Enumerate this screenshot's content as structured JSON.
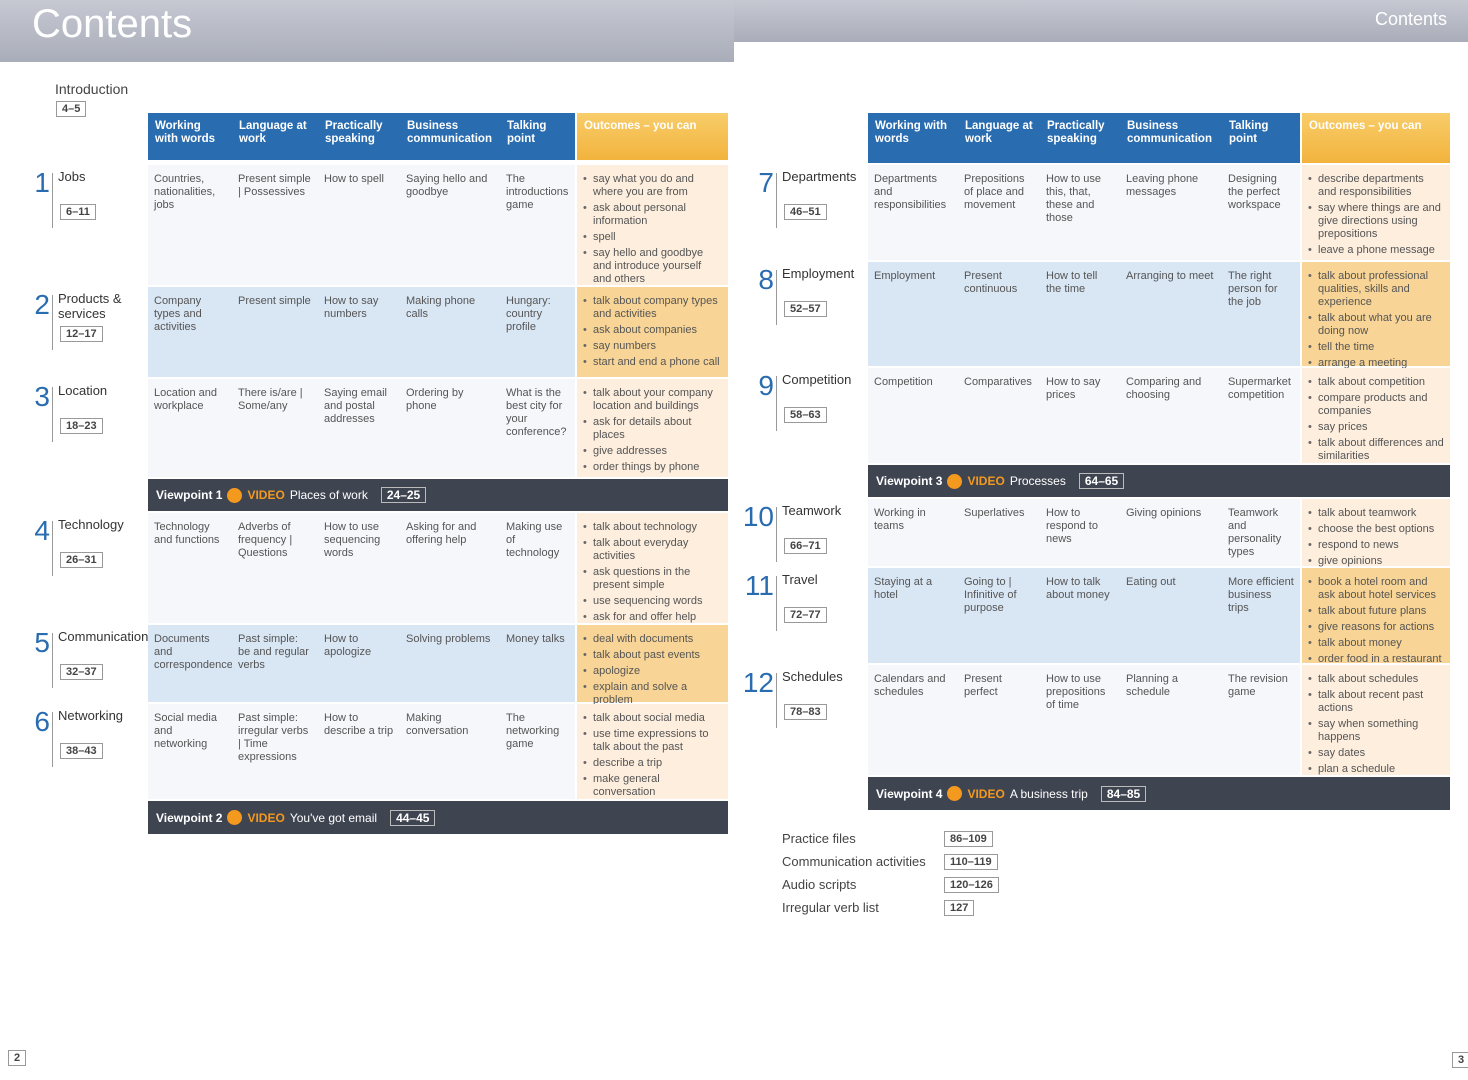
{
  "headers": [
    "Working with words",
    "Language at work",
    "Practically speaking",
    "Business communication",
    "Talking point",
    "Outcomes – you can"
  ],
  "left": {
    "title": "Contents",
    "page": "2",
    "intro": {
      "label": "Introduction",
      "pages": "4–5"
    },
    "rows": [
      {
        "num": "1",
        "title": "Jobs",
        "pages": "6–11",
        "cells": [
          "Countries, nationalities, jobs",
          "Present simple | Possessives",
          "How to spell",
          "Saying hello and goodbye",
          "The introductions game"
        ],
        "outcomes": [
          "say what you do and where you are from",
          "ask about personal information",
          "spell",
          "say hello and goodbye and introduce yourself and others"
        ]
      },
      {
        "num": "2",
        "title": "Products & services",
        "pages": "12–17",
        "cells": [
          "Company types and activities",
          "Present simple",
          "How to say numbers",
          "Making phone calls",
          "Hungary: country profile"
        ],
        "outcomes": [
          "talk about company types and activities",
          "ask about companies",
          "say numbers",
          "start and end a phone call"
        ]
      },
      {
        "num": "3",
        "title": "Location",
        "pages": "18–23",
        "cells": [
          "Location and workplace",
          "There is/are | Some/any",
          "Saying email and postal addresses",
          "Ordering by phone",
          "What is the best city for your conference?"
        ],
        "outcomes": [
          "talk about your company location and buildings",
          "ask for details about places",
          "give addresses",
          "order things by phone"
        ]
      },
      {
        "label": "Viewpoint 1",
        "video": "VIDEO",
        "topic": "Places of work",
        "pages": "24–25"
      },
      {
        "num": "4",
        "title": "Technology",
        "pages": "26–31",
        "cells": [
          "Technology and functions",
          "Adverbs of frequency | Questions",
          "How to use sequencing words",
          "Asking for and offering help",
          "Making use of technology"
        ],
        "outcomes": [
          "talk about technology",
          "talk about everyday activities",
          "ask questions in the present simple",
          "use sequencing words",
          "ask for and offer help"
        ]
      },
      {
        "num": "5",
        "title": "Communication",
        "pages": "32–37",
        "cells": [
          "Documents and correspondence",
          "Past simple: be and regular verbs",
          "How to apologize",
          "Solving problems",
          "Money talks"
        ],
        "outcomes": [
          "deal with documents",
          "talk about past events",
          "apologize",
          "explain and solve a problem"
        ]
      },
      {
        "num": "6",
        "title": "Networking",
        "pages": "38–43",
        "cells": [
          "Social media and networking",
          "Past simple: irregular verbs | Time expressions",
          "How to describe a trip",
          "Making conversation",
          "The networking game"
        ],
        "outcomes": [
          "talk about social media",
          "use time expressions to talk about the past",
          "describe a trip",
          "make general conversation"
        ]
      },
      {
        "label": "Viewpoint 2",
        "video": "VIDEO",
        "topic": "You've got email",
        "pages": "44–45"
      }
    ]
  },
  "right": {
    "title": "Contents",
    "page": "3",
    "rows": [
      {
        "num": "7",
        "title": "Departments",
        "pages": "46–51",
        "cells": [
          "Departments and responsibilities",
          "Prepositions of place and movement",
          "How to use this, that, these and those",
          "Leaving phone messages",
          "Designing the perfect workspace"
        ],
        "outcomes": [
          "describe departments and responsibilities",
          "say where things are and give directions using prepositions",
          "leave a phone message"
        ]
      },
      {
        "num": "8",
        "title": "Employment",
        "pages": "52–57",
        "cells": [
          "Employment",
          "Present continuous",
          "How to tell the time",
          "Arranging to meet",
          "The right person for the job"
        ],
        "outcomes": [
          "talk about professional qualities, skills and experience",
          "talk about what you are doing now",
          "tell the time",
          "arrange a meeting"
        ]
      },
      {
        "num": "9",
        "title": "Competition",
        "pages": "58–63",
        "cells": [
          "Competition",
          "Comparatives",
          "How to say prices",
          "Comparing and choosing",
          "Supermarket competition"
        ],
        "outcomes": [
          "talk about competition",
          "compare products and companies",
          "say prices",
          "talk about differences and similarities"
        ]
      },
      {
        "label": "Viewpoint 3",
        "video": "VIDEO",
        "topic": "Processes",
        "pages": "64–65"
      },
      {
        "num": "10",
        "title": "Teamwork",
        "pages": "66–71",
        "cells": [
          "Working in teams",
          "Superlatives",
          "How to respond to news",
          "Giving opinions",
          "Teamwork and personality types"
        ],
        "outcomes": [
          "talk about teamwork",
          "choose the best options",
          "respond to news",
          "give opinions"
        ]
      },
      {
        "num": "11",
        "title": "Travel",
        "pages": "72–77",
        "cells": [
          "Staying at a hotel",
          "Going to | Infinitive of purpose",
          "How to talk about money",
          "Eating out",
          "More efficient business trips"
        ],
        "outcomes": [
          "book a hotel room and ask about hotel services",
          "talk about future plans",
          "give reasons for actions",
          "talk about money",
          "order food in a restaurant"
        ]
      },
      {
        "num": "12",
        "title": "Schedules",
        "pages": "78–83",
        "cells": [
          "Calendars and schedules",
          "Present perfect",
          "How to use prepositions of time",
          "Planning a schedule",
          "The revision game"
        ],
        "outcomes": [
          "talk about schedules",
          "talk about recent past actions",
          "say when something happens",
          "say dates",
          "plan a schedule"
        ]
      },
      {
        "label": "Viewpoint 4",
        "video": "VIDEO",
        "topic": "A business trip",
        "pages": "84–85"
      }
    ],
    "extras": [
      {
        "label": "Practice files",
        "pages": "86–109"
      },
      {
        "label": "Communication activities",
        "pages": "110–119"
      },
      {
        "label": "Audio scripts",
        "pages": "120–126"
      },
      {
        "label": "Irregular verb list",
        "pages": "127"
      }
    ]
  }
}
